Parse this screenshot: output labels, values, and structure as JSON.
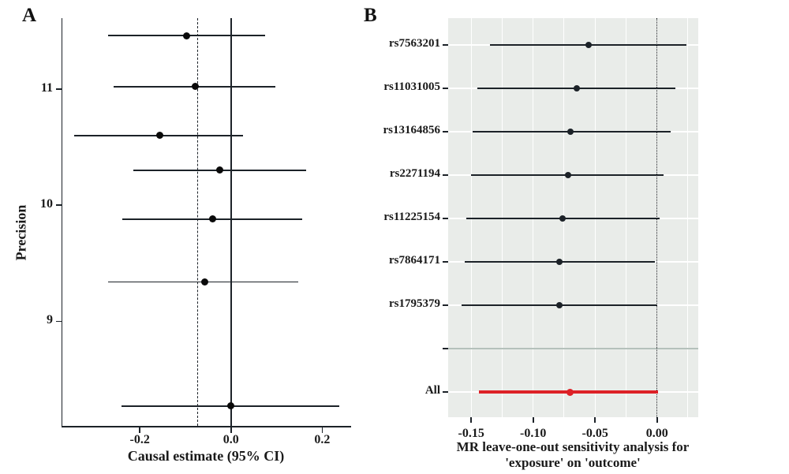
{
  "figure": {
    "panel_a_letter": "A",
    "panel_b_letter": "B"
  },
  "colors": {
    "text": "#1a1a1a",
    "line": "#1c2228",
    "point": "#0a0a0a",
    "highlight_red": "#dd2127",
    "panel_b_background": "#e9ece9",
    "gridline_white": "#ffffff",
    "separator_line": "#b5c1bb",
    "axis_line": "#1c2228"
  },
  "chart_data": [
    {
      "type": "scatter",
      "panel": "A",
      "description": "Funnel plot of single-SNP causal estimates versus precision",
      "xlabel": "Causal estimate (95% CI)",
      "ylabel": "Precision",
      "xlim": [
        -0.37,
        0.26
      ],
      "ylim": [
        8.1,
        11.61
      ],
      "grid": false,
      "legend": false,
      "x_ticks": [
        {
          "value": -0.2,
          "label": "-0.2"
        },
        {
          "value": 0.0,
          "label": "0.0"
        },
        {
          "value": 0.2,
          "label": "0.2"
        }
      ],
      "y_ticks": [
        {
          "value": 9,
          "label": "9"
        },
        {
          "value": 10,
          "label": "10"
        },
        {
          "value": 11,
          "label": "11"
        }
      ],
      "reference_lines": [
        {
          "x": -0.072,
          "style": "dashed"
        },
        {
          "x": 0.0,
          "style": "solid"
        }
      ],
      "points": [
        {
          "precision": 11.46,
          "estimate": -0.097,
          "ci_low": -0.27,
          "ci_high": 0.075
        },
        {
          "precision": 11.02,
          "estimate": -0.079,
          "ci_low": -0.257,
          "ci_high": 0.097
        },
        {
          "precision": 10.6,
          "estimate": -0.156,
          "ci_low": -0.344,
          "ci_high": 0.027
        },
        {
          "precision": 10.3,
          "estimate": -0.024,
          "ci_low": -0.215,
          "ci_high": 0.165
        },
        {
          "precision": 9.88,
          "estimate": -0.041,
          "ci_low": -0.238,
          "ci_high": 0.157
        },
        {
          "precision": 9.34,
          "estimate": -0.058,
          "ci_low": -0.27,
          "ci_high": 0.148
        },
        {
          "precision": 8.27,
          "estimate": 0.0,
          "ci_low": -0.241,
          "ci_high": 0.238
        }
      ]
    },
    {
      "type": "forest",
      "panel": "B",
      "description": "MR leave-one-out sensitivity analysis forest plot",
      "xlabel_line1": "MR leave-one-out sensitivity analysis for",
      "xlabel_line2": "'exposure' on 'outcome'",
      "xlim": [
        -0.1686,
        0.0333
      ],
      "grid": true,
      "legend": false,
      "x_ticks": [
        {
          "value": -0.15,
          "label": "-0.15"
        },
        {
          "value": -0.1,
          "label": "-0.10"
        },
        {
          "value": -0.05,
          "label": "-0.05"
        },
        {
          "value": 0.0,
          "label": "0.00"
        }
      ],
      "minor_gridlines": [
        -0.125,
        -0.075,
        -0.025,
        0.025
      ],
      "reference_line": {
        "x": 0.0,
        "style": "dotted"
      },
      "rows": [
        {
          "label": "rs7563201",
          "estimate": -0.055,
          "ci_low": -0.135,
          "ci_high": 0.024,
          "highlight": false,
          "separator": false
        },
        {
          "label": "rs11031005",
          "estimate": -0.065,
          "ci_low": -0.145,
          "ci_high": 0.015,
          "highlight": false,
          "separator": false
        },
        {
          "label": "rs13164856",
          "estimate": -0.07,
          "ci_low": -0.149,
          "ci_high": 0.011,
          "highlight": false,
          "separator": false
        },
        {
          "label": "rs2271194",
          "estimate": -0.072,
          "ci_low": -0.15,
          "ci_high": 0.005,
          "highlight": false,
          "separator": false
        },
        {
          "label": "rs11225154",
          "estimate": -0.076,
          "ci_low": -0.154,
          "ci_high": 0.002,
          "highlight": false,
          "separator": false
        },
        {
          "label": "rs7864171",
          "estimate": -0.079,
          "ci_low": -0.155,
          "ci_high": -0.002,
          "highlight": false,
          "separator": false
        },
        {
          "label": "rs1795379",
          "estimate": -0.079,
          "ci_low": -0.158,
          "ci_high": 0.0,
          "highlight": false,
          "separator": false
        },
        {
          "label": "",
          "separator": true
        },
        {
          "label": "All",
          "estimate": -0.07,
          "ci_low": -0.144,
          "ci_high": 0.001,
          "highlight": true,
          "separator": false
        }
      ]
    }
  ]
}
